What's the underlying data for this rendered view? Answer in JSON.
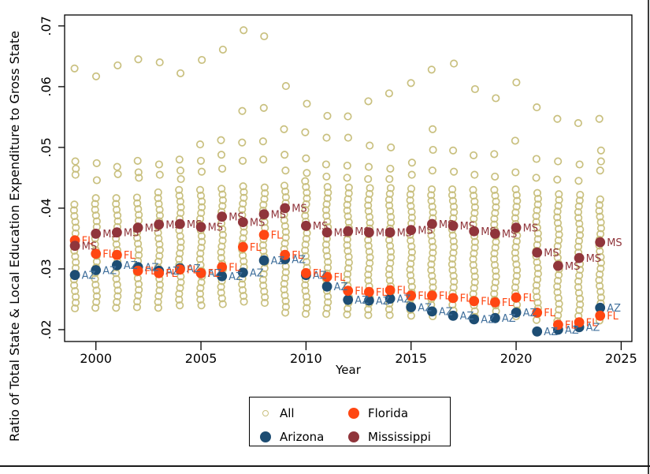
{
  "chart_data": {
    "type": "scatter",
    "title": "",
    "xlabel": "Year",
    "ylabel": "Ratio of Total State & Local Education Expenditure to Gross State",
    "x_tick_labels": [
      "2000",
      "2005",
      "2010",
      "2015",
      "2020",
      "2025"
    ],
    "x_ticks": [
      2000,
      2005,
      2010,
      2015,
      2020,
      2025
    ],
    "y_tick_labels": [
      ".02",
      ".03",
      ".04",
      ".05",
      ".06",
      ".07"
    ],
    "y_ticks": [
      0.02,
      0.03,
      0.04,
      0.05,
      0.06,
      0.07
    ],
    "xlim": [
      1998.51,
      2025.51
    ],
    "ylim": [
      0.01805,
      0.0718
    ],
    "grid": false,
    "legend_position": "below-center",
    "years": [
      1999,
      2000,
      2001,
      2002,
      2003,
      2004,
      2005,
      2006,
      2007,
      2008,
      2009,
      2010,
      2011,
      2012,
      2013,
      2014,
      2015,
      2016,
      2017,
      2018,
      2019,
      2020,
      2021,
      2022,
      2023,
      2024
    ],
    "series": [
      {
        "name": "All",
        "marker": "hollow-circle",
        "color": "#c9c07f",
        "note": "one hollow circle per state per year; rendered as vertical band from band_min to band_max in value steps of step, plus upper outliers and top outlier",
        "step": 0.00095,
        "band_min": [
          0.0235,
          0.0236,
          0.0236,
          0.0237,
          0.0236,
          0.024,
          0.024,
          0.0242,
          0.0246,
          0.0244,
          0.0228,
          0.0226,
          0.0226,
          0.0225,
          0.0224,
          0.0224,
          0.0223,
          0.0222,
          0.0222,
          0.0221,
          0.0221,
          0.0222,
          0.0216,
          0.0214,
          0.0213,
          0.0215
        ],
        "band_max": [
          0.0413,
          0.0424,
          0.042,
          0.0421,
          0.043,
          0.0432,
          0.0435,
          0.0438,
          0.044,
          0.0442,
          0.0445,
          0.0446,
          0.044,
          0.0438,
          0.0436,
          0.0435,
          0.0436,
          0.0438,
          0.0438,
          0.0436,
          0.0434,
          0.0438,
          0.043,
          0.0428,
          0.0425,
          0.042
        ],
        "upper": [
          [
            0.0477,
            0.0465,
            0.0455
          ],
          [
            0.0474,
            0.0446
          ],
          [
            0.0468,
            0.0456
          ],
          [
            0.0478,
            0.0459,
            0.045
          ],
          [
            0.0472,
            0.0455
          ],
          [
            0.048,
            0.0462,
            0.0448
          ],
          [
            0.0505,
            0.0478,
            0.046
          ],
          [
            0.0512,
            0.0488,
            0.0465
          ],
          [
            0.056,
            0.0508,
            0.0478
          ],
          [
            0.0565,
            0.051,
            0.048
          ],
          [
            0.053,
            0.0488,
            0.0462
          ],
          [
            0.0525,
            0.0482,
            0.0458
          ],
          [
            0.0516,
            0.0472,
            0.0452
          ],
          [
            0.0516,
            0.047,
            0.045
          ],
          [
            0.0503,
            0.0468,
            0.0448
          ],
          [
            0.05,
            0.0465,
            0.0448
          ],
          [
            0.0475,
            0.0455
          ],
          [
            0.053,
            0.0496,
            0.0462
          ],
          [
            0.0495,
            0.046
          ],
          [
            0.0487,
            0.0455
          ],
          [
            0.0489,
            0.0452
          ],
          [
            0.0511,
            0.0459
          ],
          [
            0.0481,
            0.045
          ],
          [
            0.0477,
            0.0447
          ],
          [
            0.0472,
            0.0445
          ],
          [
            0.0495,
            0.0477,
            0.0462
          ]
        ],
        "top": [
          0.063,
          0.0617,
          0.0635,
          0.0645,
          0.064,
          0.0622,
          0.0644,
          0.0661,
          0.0693,
          0.0683,
          0.0601,
          0.0572,
          0.0552,
          0.0551,
          0.0576,
          0.0589,
          0.0606,
          0.0628,
          0.0638,
          0.0596,
          0.0581,
          0.0607,
          0.0566,
          0.0547,
          0.054,
          0.0547
        ]
      },
      {
        "name": "Arizona",
        "marker": "filled-circle",
        "marker_label": "AZ",
        "color": "#1d4d73",
        "label_color": "#41709c",
        "values": [
          0.029,
          0.0298,
          0.0306,
          0.0303,
          0.0297,
          0.0301,
          0.0293,
          0.0288,
          0.0294,
          0.0314,
          0.0316,
          0.029,
          0.0271,
          0.0249,
          0.0248,
          0.0251,
          0.0237,
          0.023,
          0.0223,
          0.0217,
          0.0219,
          0.0228,
          0.0197,
          0.02,
          0.0204,
          0.0236
        ]
      },
      {
        "name": "Florida",
        "marker": "filled-circle",
        "marker_label": "FL",
        "color": "#ff4712",
        "label_color": "#ff4712",
        "values": [
          0.0347,
          0.0325,
          0.0323,
          0.0297,
          0.0293,
          0.0299,
          0.0293,
          0.0303,
          0.0336,
          0.0356,
          0.0323,
          0.0293,
          0.0287,
          0.0264,
          0.0262,
          0.0265,
          0.0256,
          0.0256,
          0.0252,
          0.0247,
          0.0245,
          0.0253,
          0.0228,
          0.0208,
          0.0212,
          0.0223
        ]
      },
      {
        "name": "Mississippi",
        "marker": "filled-circle",
        "marker_label": "MS",
        "color": "#90353b",
        "label_color": "#90353b",
        "values": [
          0.0338,
          0.0358,
          0.036,
          0.0368,
          0.0373,
          0.0374,
          0.0369,
          0.0386,
          0.0377,
          0.039,
          0.04,
          0.0371,
          0.036,
          0.0362,
          0.036,
          0.036,
          0.0364,
          0.0374,
          0.0371,
          0.0362,
          0.0358,
          0.0368,
          0.0327,
          0.0305,
          0.0318,
          0.0344
        ]
      }
    ],
    "legend": {
      "items": [
        {
          "label": "All",
          "marker": "hollow-circle",
          "color": "#c9c07f"
        },
        {
          "label": "Florida",
          "marker": "filled-circle",
          "color": "#ff4712"
        },
        {
          "label": "Arizona",
          "marker": "filled-circle",
          "color": "#1d4d73"
        },
        {
          "label": "Mississippi",
          "marker": "filled-circle",
          "color": "#90353b"
        }
      ]
    }
  }
}
